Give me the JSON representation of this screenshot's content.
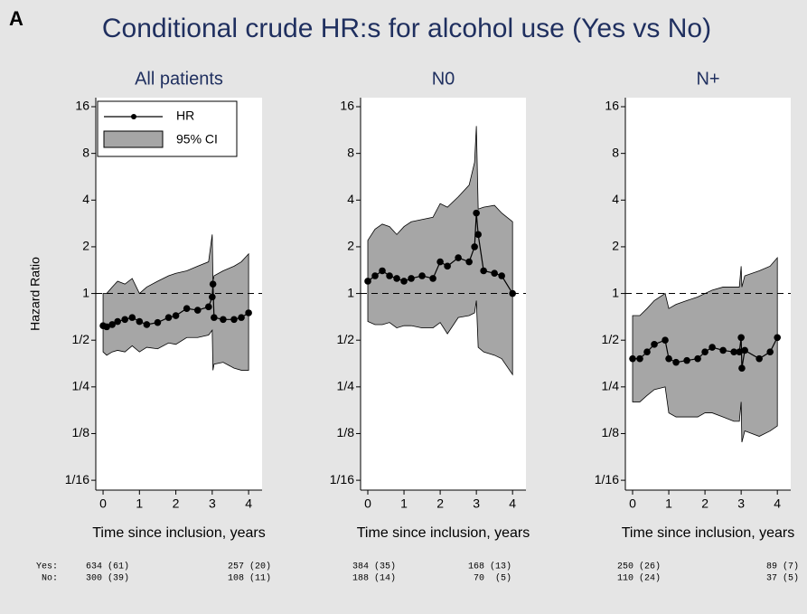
{
  "panel_label": "A",
  "page_title": "Conditional crude HR:s for alcohol use (Yes vs No)",
  "at_risk_labels": [
    "Yes:",
    "No:"
  ],
  "chart_data": [
    {
      "type": "line",
      "title": "All patients",
      "xlabel": "Time since inclusion, years",
      "ylabel": "Hazard Ratio",
      "log_y": true,
      "legend": "top-left",
      "reference_line": 1,
      "xlim": [
        -0.2,
        4.37
      ],
      "xticks": [
        0,
        1,
        2,
        3,
        4
      ],
      "ylim": [
        0.054,
        18.3
      ],
      "yticks": [
        {
          "value": 0.0625,
          "label": "1/16"
        },
        {
          "value": 0.125,
          "label": "1/8"
        },
        {
          "value": 0.25,
          "label": "1/4"
        },
        {
          "value": 0.5,
          "label": "1/2"
        },
        1,
        2,
        4,
        8,
        16
      ],
      "x": [
        0,
        0.1,
        0.25,
        0.4,
        0.6,
        0.8,
        1.0,
        1.2,
        1.5,
        1.8,
        2.0,
        2.3,
        2.6,
        2.9,
        3.0,
        3.02,
        3.05,
        3.3,
        3.6,
        3.8,
        4.0
      ],
      "series": [
        {
          "name": "HR",
          "color": "#000000",
          "values": [
            0.62,
            0.61,
            0.63,
            0.66,
            0.68,
            0.7,
            0.66,
            0.63,
            0.65,
            0.7,
            0.72,
            0.8,
            0.78,
            0.82,
            0.95,
            1.15,
            0.7,
            0.68,
            0.68,
            0.7,
            0.75
          ]
        }
      ],
      "ci": {
        "name": "95% CI",
        "color": "#a6a6a6",
        "upper": [
          1.0,
          1.0,
          1.1,
          1.2,
          1.15,
          1.25,
          1.0,
          1.1,
          1.2,
          1.3,
          1.35,
          1.4,
          1.5,
          1.6,
          2.4,
          1.2,
          1.3,
          1.4,
          1.5,
          1.6,
          1.8
        ],
        "lower": [
          0.42,
          0.4,
          0.42,
          0.43,
          0.42,
          0.46,
          0.42,
          0.45,
          0.44,
          0.48,
          0.47,
          0.52,
          0.52,
          0.54,
          0.58,
          0.32,
          0.35,
          0.36,
          0.33,
          0.32,
          0.32
        ]
      },
      "at_risk": [
        [
          "634 (61)",
          "257 (20)"
        ],
        [
          "300 (39)",
          "108 (11)"
        ]
      ]
    },
    {
      "type": "line",
      "title": "N0",
      "xlabel": "Time since inclusion, years",
      "log_y": true,
      "reference_line": 1,
      "xlim": [
        -0.2,
        4.37
      ],
      "xticks": [
        0,
        1,
        2,
        3,
        4
      ],
      "ylim": [
        0.054,
        18.3
      ],
      "yticks": [
        {
          "value": 0.0625,
          "label": "1/16"
        },
        {
          "value": 0.125,
          "label": "1/8"
        },
        {
          "value": 0.25,
          "label": "1/4"
        },
        {
          "value": 0.5,
          "label": "1/2"
        },
        1,
        2,
        4,
        8,
        16
      ],
      "x": [
        0,
        0.2,
        0.4,
        0.6,
        0.8,
        1.0,
        1.2,
        1.5,
        1.8,
        2.0,
        2.2,
        2.5,
        2.8,
        2.95,
        3.0,
        3.05,
        3.2,
        3.5,
        3.7,
        4.0
      ],
      "series": [
        {
          "name": "HR",
          "color": "#000000",
          "values": [
            1.2,
            1.3,
            1.4,
            1.3,
            1.25,
            1.2,
            1.25,
            1.3,
            1.25,
            1.6,
            1.5,
            1.7,
            1.6,
            2.0,
            3.3,
            2.4,
            1.4,
            1.35,
            1.3,
            1.0
          ]
        }
      ],
      "ci": {
        "name": "95% CI",
        "color": "#a6a6a6",
        "upper": [
          2.2,
          2.6,
          2.8,
          2.7,
          2.4,
          2.7,
          2.9,
          3.0,
          3.1,
          3.8,
          3.6,
          4.2,
          5.0,
          7.0,
          12,
          3.5,
          3.6,
          3.7,
          3.3,
          2.9
        ],
        "lower": [
          0.66,
          0.63,
          0.63,
          0.65,
          0.6,
          0.62,
          0.62,
          0.6,
          0.6,
          0.65,
          0.55,
          0.7,
          0.72,
          0.75,
          0.9,
          0.45,
          0.42,
          0.4,
          0.38,
          0.3
        ]
      },
      "at_risk": [
        [
          "384 (35)",
          "168 (13)"
        ],
        [
          "188 (14)",
          "70  (5)"
        ]
      ]
    },
    {
      "type": "line",
      "title": "N+",
      "xlabel": "Time since inclusion, years",
      "log_y": true,
      "reference_line": 1,
      "xlim": [
        -0.2,
        4.37
      ],
      "xticks": [
        0,
        1,
        2,
        3,
        4
      ],
      "ylim": [
        0.054,
        18.3
      ],
      "yticks": [
        {
          "value": 0.0625,
          "label": "1/16"
        },
        {
          "value": 0.125,
          "label": "1/8"
        },
        {
          "value": 0.25,
          "label": "1/4"
        },
        {
          "value": 0.5,
          "label": "1/2"
        },
        1,
        2,
        4,
        8,
        16
      ],
      "x": [
        0,
        0.2,
        0.4,
        0.6,
        0.9,
        1.0,
        1.2,
        1.5,
        1.8,
        2.0,
        2.2,
        2.5,
        2.8,
        2.95,
        3.0,
        3.02,
        3.1,
        3.5,
        3.8,
        4.0
      ],
      "series": [
        {
          "name": "HR",
          "color": "#000000",
          "values": [
            0.38,
            0.38,
            0.42,
            0.47,
            0.5,
            0.38,
            0.36,
            0.37,
            0.38,
            0.42,
            0.45,
            0.43,
            0.42,
            0.42,
            0.52,
            0.33,
            0.43,
            0.38,
            0.42,
            0.52
          ]
        }
      ],
      "ci": {
        "name": "95% CI",
        "color": "#a6a6a6",
        "upper": [
          0.72,
          0.72,
          0.8,
          0.9,
          1.0,
          0.8,
          0.85,
          0.9,
          0.95,
          1.0,
          1.05,
          1.1,
          1.1,
          1.1,
          1.5,
          1.1,
          1.3,
          1.4,
          1.5,
          1.7
        ],
        "lower": [
          0.2,
          0.2,
          0.22,
          0.24,
          0.25,
          0.17,
          0.16,
          0.16,
          0.16,
          0.17,
          0.17,
          0.16,
          0.15,
          0.15,
          0.2,
          0.11,
          0.13,
          0.12,
          0.13,
          0.14
        ]
      },
      "at_risk": [
        [
          "250 (26)",
          "89 (7)"
        ],
        [
          "110 (24)",
          "37 (5)"
        ]
      ]
    }
  ]
}
